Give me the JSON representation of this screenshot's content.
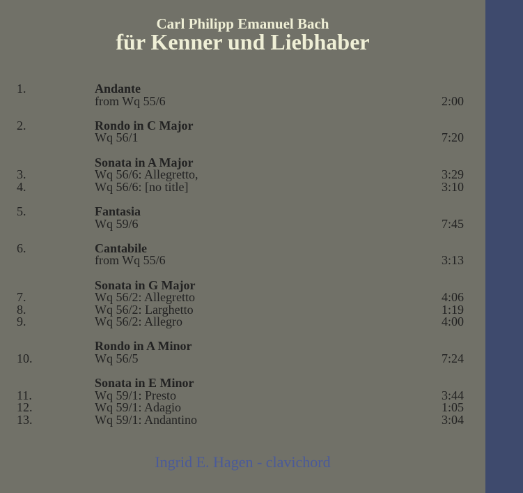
{
  "header": {
    "composer": "Carl Philipp Emanuel Bach",
    "title": "für Kenner und Liebhaber"
  },
  "groups": [
    {
      "rows": [
        {
          "num": "1.",
          "text": "Andante",
          "bold": true,
          "time": ""
        },
        {
          "num": "",
          "text": "from Wq 55/6",
          "bold": false,
          "time": "2:00"
        }
      ]
    },
    {
      "rows": [
        {
          "num": "2.",
          "text": "Rondo in C Major",
          "bold": true,
          "time": ""
        },
        {
          "num": "",
          "text": "Wq 56/1",
          "bold": false,
          "time": "7:20"
        }
      ]
    },
    {
      "rows": [
        {
          "num": "",
          "text": "Sonata in A Major",
          "bold": true,
          "time": ""
        },
        {
          "num": "3.",
          "text": "Wq 56/6: Allegretto,",
          "bold": false,
          "time": "3:29"
        },
        {
          "num": "4.",
          "text": "Wq 56/6: [no title]",
          "bold": false,
          "time": "3:10"
        }
      ]
    },
    {
      "rows": [
        {
          "num": "5.",
          "text": "Fantasia",
          "bold": true,
          "time": ""
        },
        {
          "num": "",
          "text": "Wq 59/6",
          "bold": false,
          "time": "7:45"
        }
      ]
    },
    {
      "rows": [
        {
          "num": "6.",
          "text": "Cantabile",
          "bold": true,
          "time": ""
        },
        {
          "num": "",
          "text": "from Wq 55/6",
          "bold": false,
          "time": "3:13"
        }
      ]
    },
    {
      "rows": [
        {
          "num": "",
          "text": "Sonata in G Major",
          "bold": true,
          "time": ""
        },
        {
          "num": "7.",
          "text": "Wq 56/2: Allegretto",
          "bold": false,
          "time": "4:06"
        },
        {
          "num": "8.",
          "text": "Wq 56/2: Larghetto",
          "bold": false,
          "time": "1:19"
        },
        {
          "num": "9.",
          "text": "Wq 56/2: Allegro",
          "bold": false,
          "time": "4:00"
        }
      ]
    },
    {
      "rows": [
        {
          "num": "",
          "text": "Rondo in A Minor",
          "bold": true,
          "time": ""
        },
        {
          "num": "10.",
          "text": "Wq 56/5",
          "bold": false,
          "time": "7:24"
        }
      ]
    },
    {
      "rows": [
        {
          "num": "",
          "text": "Sonata in E Minor",
          "bold": true,
          "time": ""
        },
        {
          "num": "11.",
          "text": "Wq 59/1: Presto",
          "bold": false,
          "time": "3:44"
        },
        {
          "num": "12.",
          "text": "Wq 59/1: Adagio",
          "bold": false,
          "time": "1:05"
        },
        {
          "num": "13.",
          "text": "Wq 59/1: Andantino",
          "bold": false,
          "time": "3:04"
        }
      ]
    }
  ],
  "performer": "Ingrid E. Hagen - clavichord",
  "colors": {
    "background": "#717168",
    "sidebar": "#3e4a6d",
    "title": "#efefd6",
    "text": "#222222",
    "performer": "#4a5a9a"
  }
}
